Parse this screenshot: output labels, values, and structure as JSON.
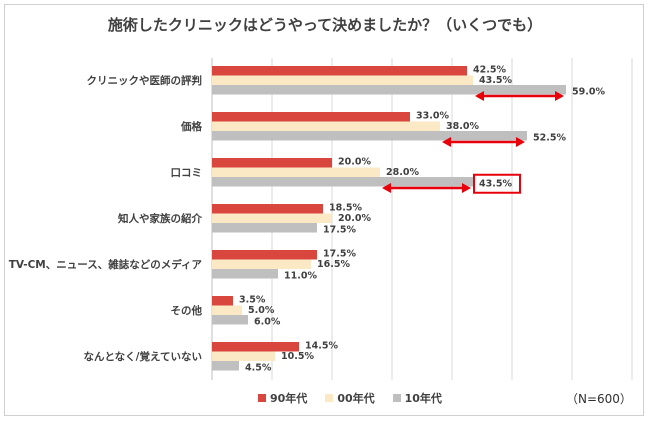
{
  "chart_data": {
    "type": "bar",
    "orientation": "horizontal",
    "title": "施術したクリニックはどうやって決めましたか？（いくつでも）",
    "categories": [
      "クリニックや医師の評判",
      "価格",
      "口コミ",
      "知人や家族の紹介",
      "TV-CM、ニュース、雑誌などのメディア",
      "その他",
      "なんとなく/覚えていない"
    ],
    "series": [
      {
        "name": "90年代",
        "color": "#d9463e",
        "values": [
          42.5,
          33.0,
          20.0,
          18.5,
          17.5,
          3.5,
          14.5
        ],
        "labels": [
          "42.5%",
          "33.0%",
          "20.0%",
          "18.5%",
          "17.5%",
          "3.5%",
          "14.5%"
        ]
      },
      {
        "name": "00年代",
        "color": "#fae9c4",
        "values": [
          43.5,
          38.0,
          28.0,
          20.0,
          16.5,
          5.0,
          10.5
        ],
        "labels": [
          "43.5%",
          "38.0%",
          "28.0%",
          "20.0%",
          "16.5%",
          "5.0%",
          "10.5%"
        ]
      },
      {
        "name": "10年代",
        "color": "#bfbfbf",
        "values": [
          59.0,
          52.5,
          43.5,
          17.5,
          11.0,
          6.0,
          4.5
        ],
        "labels": [
          "59.0%",
          "52.5%",
          "43.5%",
          "17.5%",
          "11.0%",
          "6.0%",
          "4.5%"
        ]
      }
    ],
    "xlim": [
      0,
      70
    ],
    "grid": true,
    "legend": "bottom",
    "highlighted_label": {
      "category_index": 2,
      "series_index": 2,
      "color": "#e8000b"
    },
    "arrows": [
      {
        "category_index": 0,
        "from": 43.5,
        "to": 59.0
      },
      {
        "category_index": 1,
        "from": 38.0,
        "to": 52.5
      },
      {
        "category_index": 2,
        "from": 28.0,
        "to": 43.5
      }
    ],
    "arrow_color": "#e8000b",
    "note": "（N=600）"
  }
}
